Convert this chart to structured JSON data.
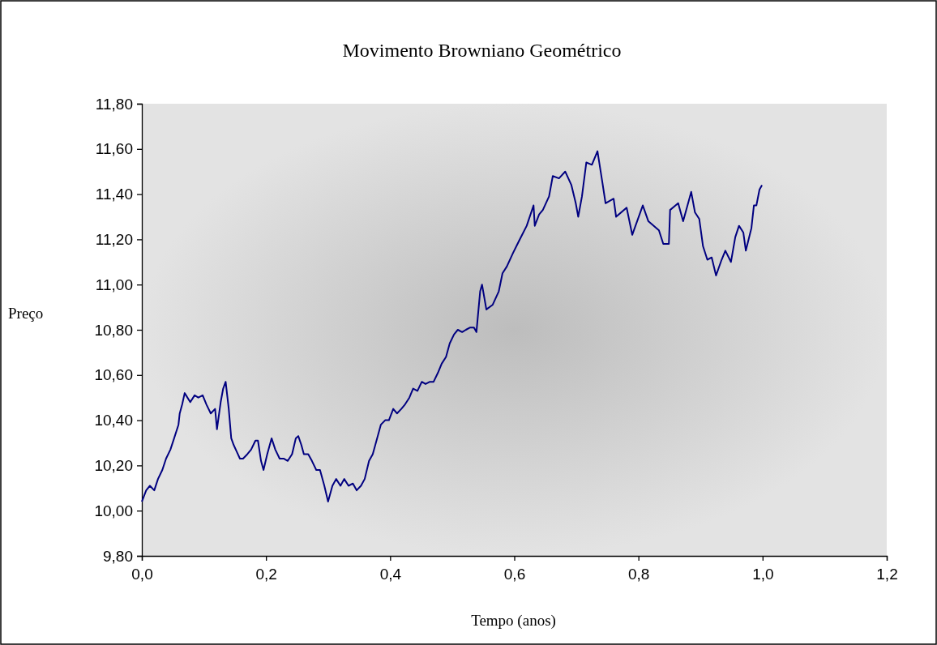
{
  "chart_data": {
    "type": "line",
    "title": "Movimento Browniano Geométrico",
    "xlabel": "Tempo (anos)",
    "ylabel": "Preço",
    "xlim": [
      0,
      1.2
    ],
    "ylim": [
      9.8,
      11.8
    ],
    "xticks": [
      {
        "value": 0,
        "label": "0,0"
      },
      {
        "value": 0.2,
        "label": "0,2"
      },
      {
        "value": 0.4,
        "label": "0,4"
      },
      {
        "value": 0.6,
        "label": "0,6"
      },
      {
        "value": 0.8,
        "label": "0,8"
      },
      {
        "value": 1,
        "label": "1,0"
      },
      {
        "value": 1.2,
        "label": "1,2"
      }
    ],
    "yticks": [
      {
        "value": 9.8,
        "label": "9,80"
      },
      {
        "value": 10,
        "label": "10,00"
      },
      {
        "value": 10.2,
        "label": "10,20"
      },
      {
        "value": 10.4,
        "label": "10,40"
      },
      {
        "value": 10.6,
        "label": "10,60"
      },
      {
        "value": 10.8,
        "label": "10,80"
      },
      {
        "value": 11,
        "label": "11,00"
      },
      {
        "value": 11.2,
        "label": "11,20"
      },
      {
        "value": 11.4,
        "label": "11,40"
      },
      {
        "value": 11.6,
        "label": "11,60"
      },
      {
        "value": 11.8,
        "label": "11,80"
      }
    ],
    "grid": false,
    "marker": "none",
    "line_style": "solid",
    "series": [
      {
        "color": "#000080",
        "x": [
          0,
          0.007,
          0.013,
          0.02,
          0.026,
          0.033,
          0.039,
          0.046,
          0.052,
          0.059,
          0.061,
          0.065,
          0.069,
          0.078,
          0.085,
          0.091,
          0.098,
          0.104,
          0.111,
          0.118,
          0.121,
          0.127,
          0.131,
          0.135,
          0.14,
          0.144,
          0.148,
          0.153,
          0.158,
          0.163,
          0.17,
          0.176,
          0.183,
          0.187,
          0.192,
          0.196,
          0.202,
          0.209,
          0.215,
          0.222,
          0.229,
          0.235,
          0.242,
          0.248,
          0.252,
          0.257,
          0.261,
          0.268,
          0.274,
          0.281,
          0.287,
          0.294,
          0.3,
          0.307,
          0.313,
          0.32,
          0.326,
          0.333,
          0.34,
          0.346,
          0.353,
          0.359,
          0.366,
          0.372,
          0.379,
          0.385,
          0.392,
          0.398,
          0.405,
          0.411,
          0.418,
          0.424,
          0.431,
          0.437,
          0.444,
          0.451,
          0.457,
          0.464,
          0.47,
          0.477,
          0.483,
          0.49,
          0.496,
          0.503,
          0.509,
          0.516,
          0.522,
          0.529,
          0.535,
          0.539,
          0.542,
          0.545,
          0.548,
          0.555,
          0.565,
          0.575,
          0.581,
          0.588,
          0.598,
          0.607,
          0.62,
          0.631,
          0.633,
          0.64,
          0.646,
          0.656,
          0.662,
          0.672,
          0.682,
          0.692,
          0.699,
          0.703,
          0.709,
          0.716,
          0.725,
          0.734,
          0.742,
          0.747,
          0.76,
          0.764,
          0.781,
          0.79,
          0.807,
          0.816,
          0.833,
          0.84,
          0.849,
          0.851,
          0.864,
          0.872,
          0.881,
          0.885,
          0.891,
          0.898,
          0.904,
          0.911,
          0.918,
          0.925,
          0.934,
          0.94,
          0.949,
          0.956,
          0.962,
          0.969,
          0.973,
          0.982,
          0.986,
          0.99,
          0.995,
          0.999
        ],
        "values": [
          10.04,
          10.09,
          10.11,
          10.09,
          10.14,
          10.18,
          10.23,
          10.27,
          10.32,
          10.38,
          10.43,
          10.47,
          10.52,
          10.48,
          10.51,
          10.5,
          10.51,
          10.47,
          10.43,
          10.45,
          10.36,
          10.48,
          10.54,
          10.57,
          10.45,
          10.32,
          10.29,
          10.26,
          10.23,
          10.23,
          10.25,
          10.27,
          10.31,
          10.31,
          10.22,
          10.18,
          10.25,
          10.32,
          10.27,
          10.23,
          10.23,
          10.22,
          10.25,
          10.32,
          10.33,
          10.29,
          10.25,
          10.25,
          10.22,
          10.18,
          10.18,
          10.11,
          10.04,
          10.11,
          10.14,
          10.11,
          10.14,
          10.11,
          10.12,
          10.09,
          10.11,
          10.14,
          10.22,
          10.25,
          10.32,
          10.38,
          10.4,
          10.4,
          10.45,
          10.43,
          10.45,
          10.47,
          10.5,
          10.54,
          10.53,
          10.57,
          10.56,
          10.57,
          10.57,
          10.61,
          10.65,
          10.68,
          10.74,
          10.78,
          10.8,
          10.79,
          10.8,
          10.81,
          10.81,
          10.79,
          10.88,
          10.97,
          11.0,
          10.89,
          10.91,
          10.97,
          11.05,
          11.08,
          11.14,
          11.19,
          11.26,
          11.35,
          11.26,
          11.31,
          11.33,
          11.39,
          11.48,
          11.47,
          11.5,
          11.44,
          11.36,
          11.3,
          11.39,
          11.54,
          11.53,
          11.59,
          11.45,
          11.36,
          11.38,
          11.3,
          11.34,
          11.22,
          11.35,
          11.28,
          11.24,
          11.18,
          11.18,
          11.33,
          11.36,
          11.28,
          11.37,
          11.41,
          11.32,
          11.29,
          11.17,
          11.11,
          11.12,
          11.04,
          11.11,
          11.15,
          11.1,
          11.21,
          11.26,
          11.23,
          11.15,
          11.25,
          11.35,
          11.35,
          11.42,
          11.44
        ]
      }
    ]
  }
}
